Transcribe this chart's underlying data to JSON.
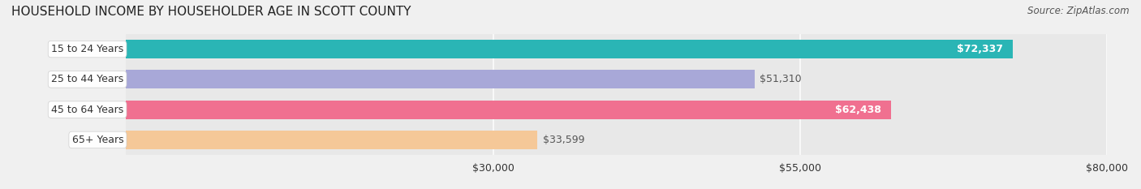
{
  "title": "HOUSEHOLD INCOME BY HOUSEHOLDER AGE IN SCOTT COUNTY",
  "source": "Source: ZipAtlas.com",
  "categories": [
    "15 to 24 Years",
    "25 to 44 Years",
    "45 to 64 Years",
    "65+ Years"
  ],
  "values": [
    72337,
    51310,
    62438,
    33599
  ],
  "bar_colors": [
    "#2ab5b5",
    "#a8a8d8",
    "#f07090",
    "#f5c898"
  ],
  "bar_edge_colors": [
    "#1a9090",
    "#8888c0",
    "#d05070",
    "#e0a870"
  ],
  "value_labels": [
    "$72,337",
    "$51,310",
    "$62,438",
    "$33,599"
  ],
  "value_label_inside": [
    true,
    false,
    true,
    false
  ],
  "xlim": [
    0,
    80000
  ],
  "xticks": [
    30000,
    55000,
    80000
  ],
  "xtick_labels": [
    "$30,000",
    "$55,000",
    "$80,000"
  ],
  "background_color": "#f0f0f0",
  "bar_background_color": "#e8e8e8",
  "title_fontsize": 11,
  "source_fontsize": 8.5,
  "label_fontsize": 9,
  "value_fontsize": 9,
  "tick_fontsize": 9,
  "bar_height": 0.62,
  "label_color": "#333333",
  "grid_color": "#ffffff",
  "inner_label_color": "#ffffff",
  "outer_label_color": "#555555"
}
